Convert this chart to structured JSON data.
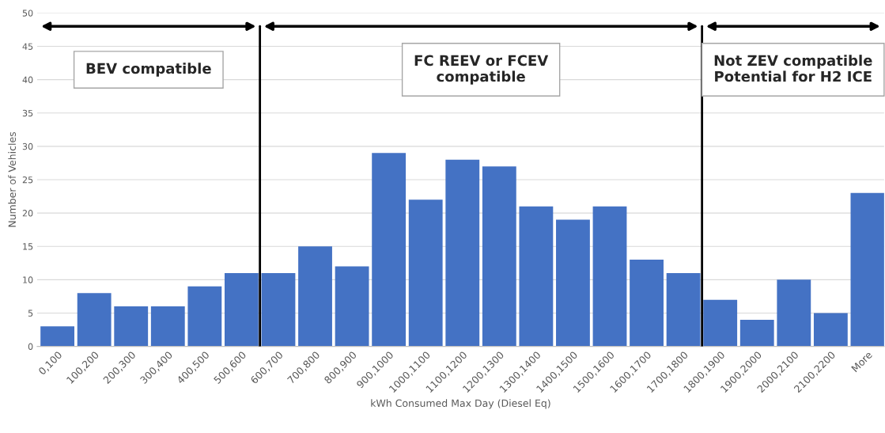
{
  "chart_data": {
    "type": "bar",
    "xlabel": "kWh Consumed Max Day (Diesel Eq)",
    "ylabel": "Number of Vehicles",
    "categories": [
      "0,100",
      "100,200",
      "200,300",
      "300,400",
      "400,500",
      "500,600",
      "600,700",
      "700,800",
      "800,900",
      "900,1000",
      "1000,1100",
      "1100,1200",
      "1200,1300",
      "1300,1400",
      "1400,1500",
      "1500,1600",
      "1600,1700",
      "1700,1800",
      "1800,1900",
      "1900,2000",
      "2000,2100",
      "2100,2200",
      "More"
    ],
    "values": [
      3,
      8,
      6,
      6,
      9,
      11,
      11,
      15,
      12,
      29,
      22,
      28,
      27,
      21,
      19,
      21,
      13,
      11,
      7,
      4,
      10,
      5,
      23
    ],
    "color": "#4472c4",
    "ylim": [
      0,
      50
    ],
    "yticks": [
      0,
      5,
      10,
      15,
      20,
      25,
      30,
      35,
      40,
      45,
      50
    ],
    "grid": "y",
    "annotations": [
      "BEV compatible",
      "FC REEV or FCEV\ncompatible",
      "Not ZEV compatible\nPotential for H2 ICE"
    ]
  }
}
